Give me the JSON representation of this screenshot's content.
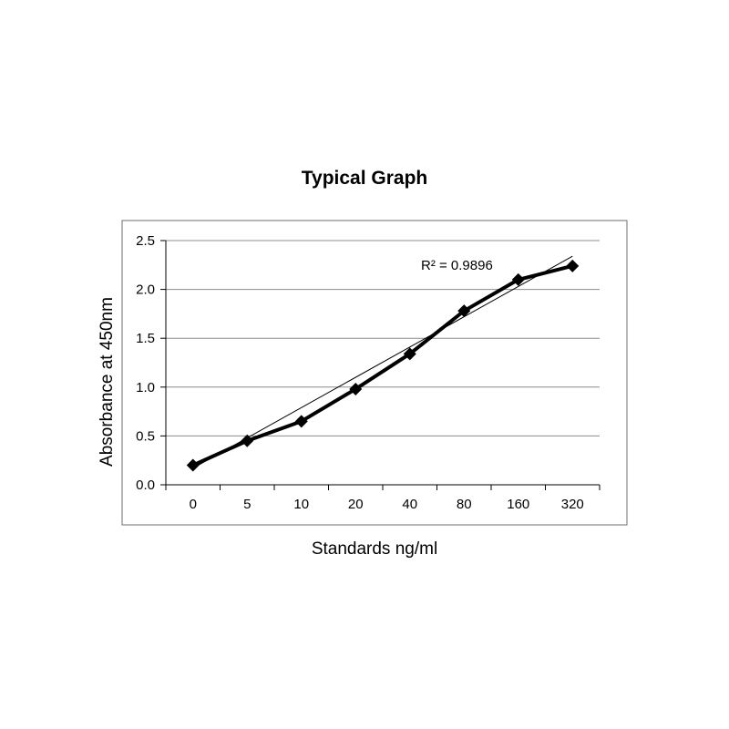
{
  "chart_data": {
    "type": "line",
    "title": "Typical Graph",
    "xlabel": "Standards ng/ml",
    "ylabel": "Absorbance at 450nm",
    "categories": [
      "0",
      "5",
      "10",
      "20",
      "40",
      "80",
      "160",
      "320"
    ],
    "series": [
      {
        "values": [
          0.2,
          0.45,
          0.65,
          0.98,
          1.34,
          1.78,
          2.1,
          2.24
        ]
      }
    ],
    "trendline": {
      "type": "linear",
      "r_squared_label": "R² = 0.9896",
      "start": 0.17,
      "end": 2.34
    },
    "ylim": [
      0,
      2.5
    ],
    "yticks": [
      "0.0",
      "0.5",
      "1.0",
      "1.5",
      "2.0",
      "2.5"
    ],
    "grid": true,
    "legend": "none",
    "colors": {
      "series": "#000000",
      "trendline": "#000000",
      "grid": "#8c8c8c"
    },
    "marker": "diamond"
  }
}
